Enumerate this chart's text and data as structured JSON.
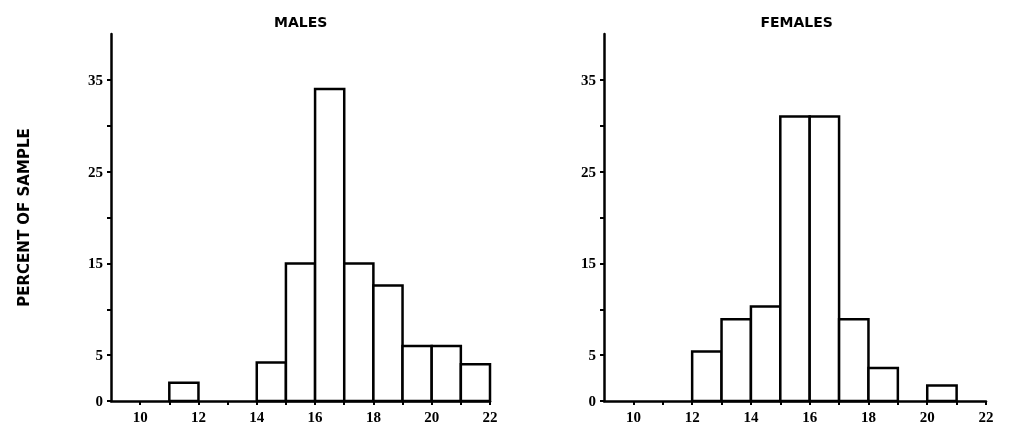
{
  "chart_data": [
    {
      "type": "histogram",
      "title": "MALES",
      "ylabel": "PERCENT OF SAMPLE",
      "color": "#ffffff",
      "bins": [
        9,
        10,
        11,
        12,
        13,
        14,
        15,
        16,
        17,
        18,
        19,
        20,
        21,
        22
      ],
      "values": [
        0,
        0,
        2,
        0,
        0,
        4.2,
        15,
        34,
        15,
        12.6,
        6,
        6,
        4
      ],
      "xlim": [
        9,
        22
      ],
      "xticks": [
        10,
        {
          "value": 11,
          "label": null
        },
        12,
        {
          "value": 13,
          "label": null
        },
        14,
        {
          "value": 15,
          "label": null
        },
        16,
        {
          "value": 17,
          "label": null
        },
        18,
        {
          "value": 19,
          "label": null
        },
        20,
        {
          "value": 21,
          "label": null
        },
        22
      ],
      "ylim": [
        0,
        40
      ],
      "yticks": [
        0,
        5,
        {
          "value": 10,
          "label": null
        },
        15,
        {
          "value": 20,
          "label": null
        },
        25,
        {
          "value": 30,
          "label": null
        },
        35
      ],
      "grid": false
    },
    {
      "type": "histogram",
      "title": "FEMALES",
      "color": "#ffffff",
      "bins": [
        9,
        10,
        11,
        12,
        13,
        14,
        15,
        16,
        17,
        18,
        19,
        20,
        21,
        22
      ],
      "values": [
        0,
        0,
        0,
        5.4,
        8.9,
        10.3,
        31,
        31,
        8.9,
        3.6,
        0,
        1.7,
        0
      ],
      "xlim": [
        9,
        22
      ],
      "xticks": [
        10,
        {
          "value": 11,
          "label": null
        },
        12,
        {
          "value": 13,
          "label": null
        },
        14,
        {
          "value": 15,
          "label": null
        },
        16,
        {
          "value": 17,
          "label": null
        },
        18,
        {
          "value": 19,
          "label": null
        },
        20,
        {
          "value": 21,
          "label": null
        },
        22
      ],
      "ylim": [
        0,
        40
      ],
      "yticks": [
        0,
        5,
        {
          "value": 10,
          "label": null
        },
        15,
        {
          "value": 20,
          "label": null
        },
        25,
        {
          "value": 30,
          "label": null
        },
        35
      ],
      "grid": false
    }
  ]
}
